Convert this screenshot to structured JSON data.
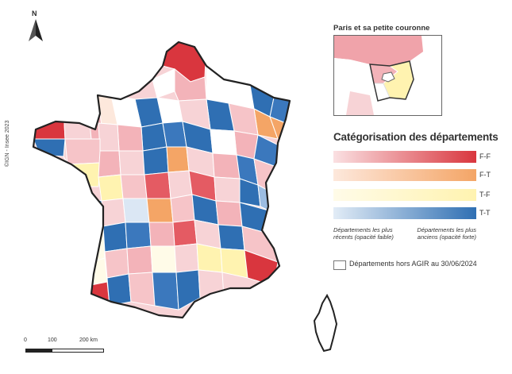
{
  "north_arrow": {
    "letter": "N",
    "icon": "north-arrow-icon"
  },
  "copyright": "©IGN - Insee 2023",
  "scale": {
    "ticks": [
      "0",
      "100",
      "200 km"
    ]
  },
  "inset": {
    "title": "Paris et sa petite couronne"
  },
  "legend": {
    "title": "Catégorisation des départements",
    "categories": [
      {
        "code": "F-F",
        "color_light": "#fae0e2",
        "color_strong": "#d9363e"
      },
      {
        "code": "F-T",
        "color_light": "#fde8dc",
        "color_strong": "#f4a566"
      },
      {
        "code": "T-F",
        "color_light": "#fffbe8",
        "color_strong": "#fff3b0"
      },
      {
        "code": "T-T",
        "color_light": "#e2ecf6",
        "color_strong": "#2f6fb3"
      }
    ],
    "note_left": "Départements les plus récents (opacité faible)",
    "note_right": "Départements les plus anciens (opacité forte)",
    "outside_label": "Départements hors AGIR au 30/06/2024"
  },
  "colors": {
    "outline": "#222222",
    "dept_border": "#ffffff",
    "outside": "#ffffff"
  }
}
